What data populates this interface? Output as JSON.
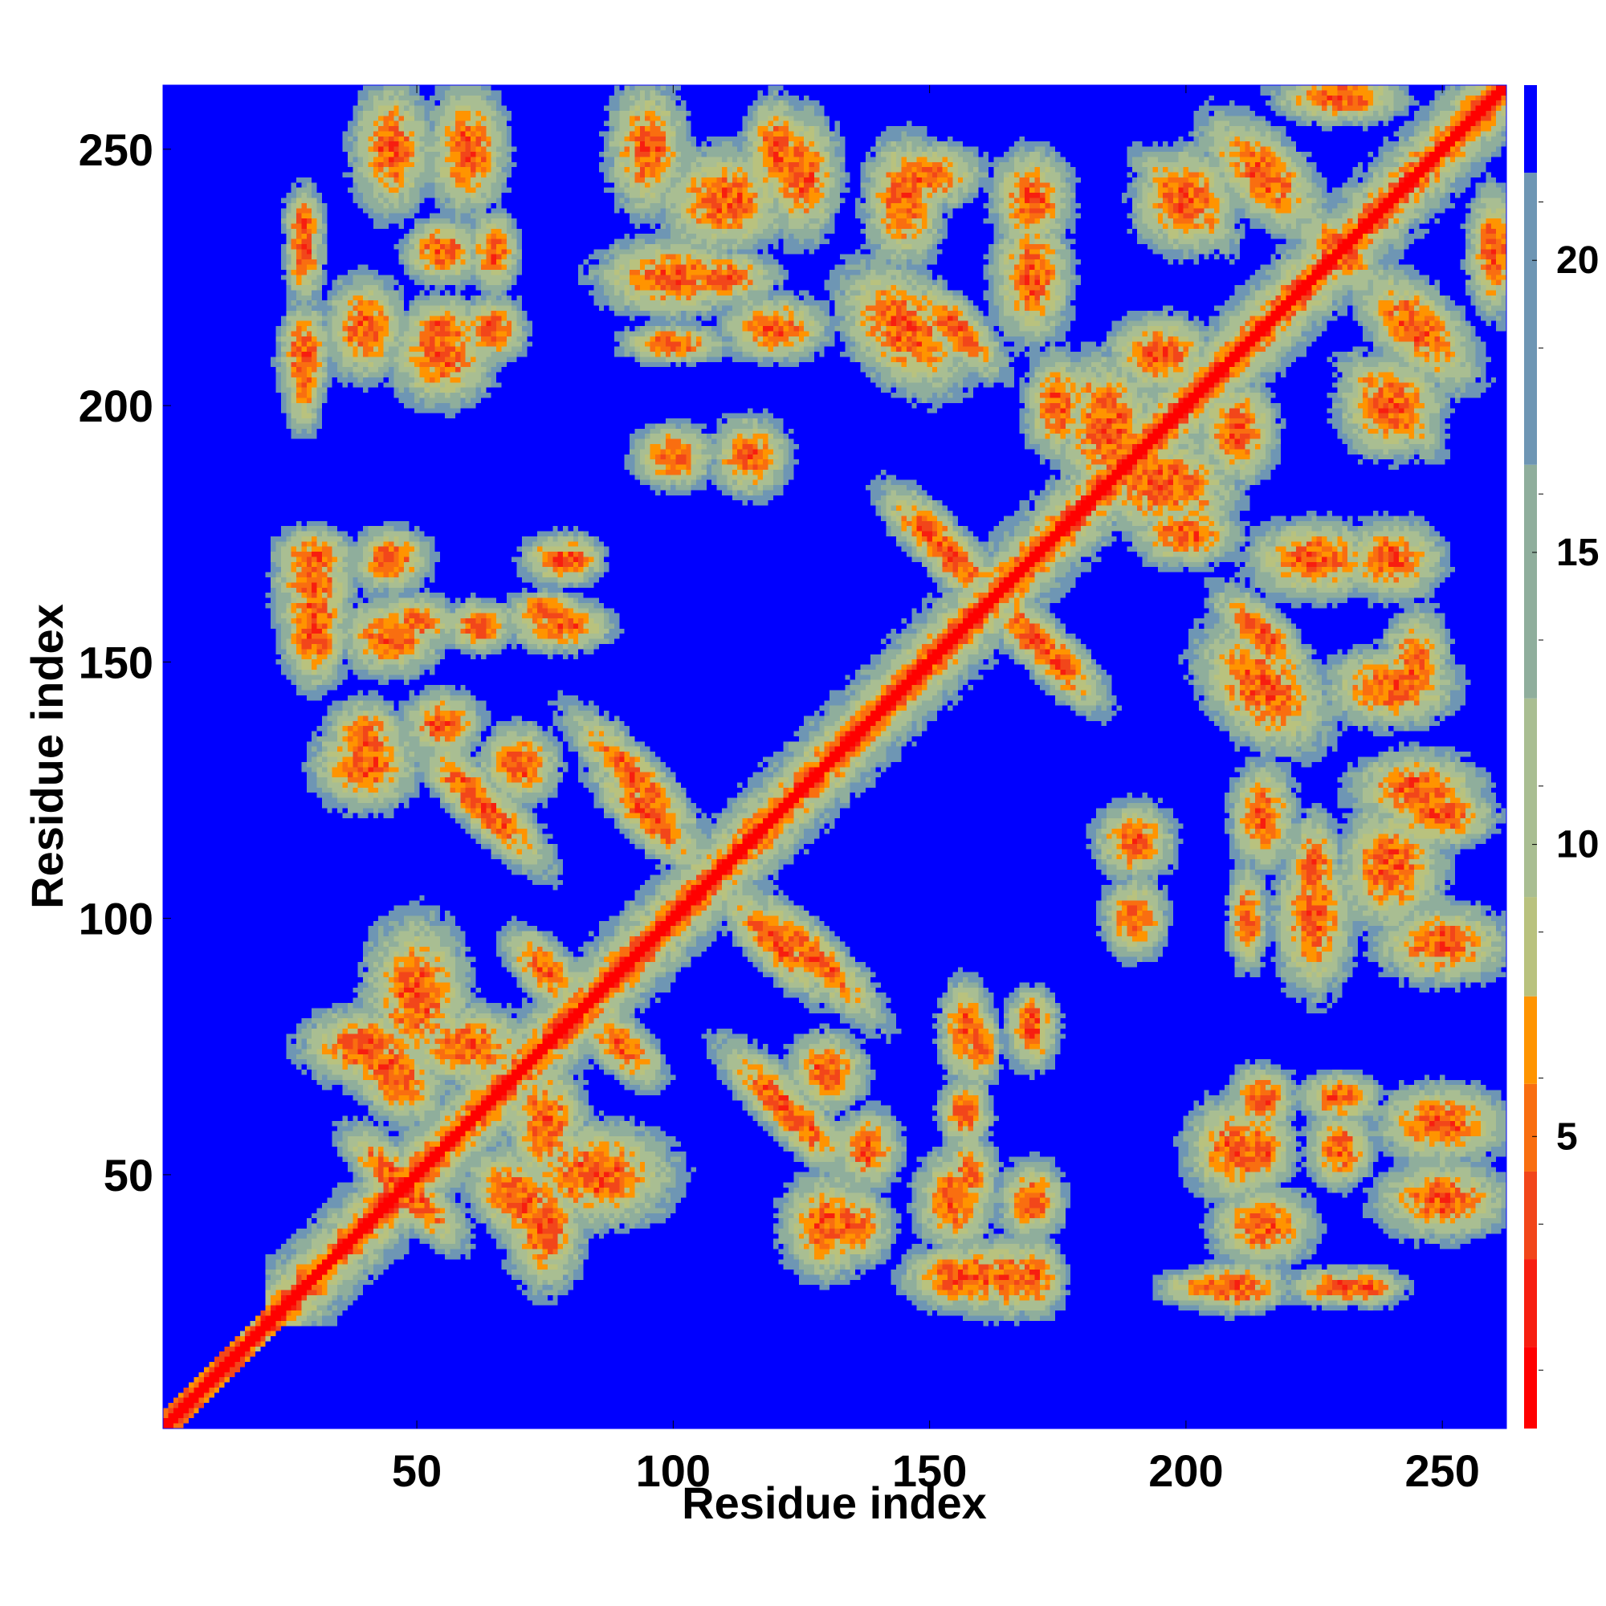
{
  "chart_data": {
    "type": "heatmap",
    "description_of_values": "residue-residue distance map (Angstrom-like units), symmetric about diagonal",
    "n_residues": 262,
    "xlabel": "Residue index",
    "ylabel": "Residue index",
    "xlim": [
      1,
      262
    ],
    "ylim": [
      1,
      262
    ],
    "x_ticks": [
      "50",
      "100",
      "150",
      "200",
      "250"
    ],
    "y_ticks": [
      "50",
      "100",
      "150",
      "200",
      "250"
    ],
    "colorbar": {
      "range": [
        0,
        23
      ],
      "ticks": [
        "5",
        "10",
        "15",
        "20"
      ],
      "tick_values": [
        5,
        10,
        15,
        20
      ],
      "levels": [
        {
          "from": 0,
          "to": 1.4,
          "color": "#ff0000"
        },
        {
          "from": 1.4,
          "to": 2.9,
          "color": "#f71e10"
        },
        {
          "from": 2.9,
          "to": 4.4,
          "color": "#f2461a"
        },
        {
          "from": 4.4,
          "to": 5.9,
          "color": "#f96e10"
        },
        {
          "from": 5.9,
          "to": 7.4,
          "color": "#ff9400"
        },
        {
          "from": 7.4,
          "to": 9.1,
          "color": "#b9c27e"
        },
        {
          "from": 9.1,
          "to": 12.5,
          "color": "#a9be92"
        },
        {
          "from": 12.5,
          "to": 16.5,
          "color": "#8fae9c"
        },
        {
          "from": 16.5,
          "to": 21.5,
          "color": "#6e96b4"
        },
        {
          "from": 21.5,
          "to": 23,
          "color": "#0000ff"
        }
      ]
    },
    "background_color": "#0000ff",
    "contact_clusters": [
      {
        "x": 92,
        "y": 128,
        "sx": 14,
        "sy": 4,
        "orient": "anti"
      },
      {
        "x": 120,
        "y": 95,
        "sx": 12,
        "sy": 4,
        "orient": "anti"
      },
      {
        "x": 65,
        "y": 120,
        "sx": 12,
        "sy": 4,
        "orient": "anti"
      },
      {
        "x": 55,
        "y": 138,
        "sx": 6,
        "sy": 5,
        "orient": "none"
      },
      {
        "x": 40,
        "y": 130,
        "sx": 8,
        "sy": 7,
        "orient": "none"
      },
      {
        "x": 70,
        "y": 130,
        "sx": 6,
        "sy": 6,
        "orient": "none"
      },
      {
        "x": 45,
        "y": 50,
        "sx": 10,
        "sy": 4,
        "orient": "anti"
      },
      {
        "x": 60,
        "y": 75,
        "sx": 10,
        "sy": 6,
        "orient": "none"
      },
      {
        "x": 40,
        "y": 75,
        "sx": 10,
        "sy": 6,
        "orient": "none"
      },
      {
        "x": 70,
        "y": 45,
        "sx": 10,
        "sy": 6,
        "orient": "anti"
      },
      {
        "x": 85,
        "y": 50,
        "sx": 12,
        "sy": 8,
        "orient": "none"
      },
      {
        "x": 90,
        "y": 75,
        "sx": 8,
        "sy": 4,
        "orient": "anti"
      },
      {
        "x": 75,
        "y": 90,
        "sx": 6,
        "sy": 4,
        "orient": "anti"
      },
      {
        "x": 125,
        "y": 60,
        "sx": 10,
        "sy": 4,
        "orient": "anti"
      },
      {
        "x": 135,
        "y": 40,
        "sx": 6,
        "sy": 6,
        "orient": "none"
      },
      {
        "x": 165,
        "y": 30,
        "sx": 5,
        "sy": 6,
        "orient": "none"
      },
      {
        "x": 155,
        "y": 45,
        "sx": 6,
        "sy": 8,
        "orient": "none"
      },
      {
        "x": 170,
        "y": 80,
        "sx": 4,
        "sy": 5,
        "orient": "none"
      },
      {
        "x": 160,
        "y": 75,
        "sx": 3,
        "sy": 6,
        "orient": "none"
      },
      {
        "x": 155,
        "y": 30,
        "sx": 8,
        "sy": 5,
        "orient": "none"
      },
      {
        "x": 190,
        "y": 115,
        "sx": 6,
        "sy": 6,
        "orient": "none"
      },
      {
        "x": 210,
        "y": 55,
        "sx": 8,
        "sy": 8,
        "orient": "none"
      },
      {
        "x": 205,
        "y": 28,
        "sx": 8,
        "sy": 3,
        "orient": "none"
      },
      {
        "x": 230,
        "y": 28,
        "sx": 8,
        "sy": 3,
        "orient": "none"
      },
      {
        "x": 225,
        "y": 110,
        "sx": 4,
        "sy": 8,
        "orient": "none"
      },
      {
        "x": 212,
        "y": 100,
        "sx": 3,
        "sy": 8,
        "orient": "none"
      },
      {
        "x": 250,
        "y": 120,
        "sx": 8,
        "sy": 5,
        "orient": "none"
      },
      {
        "x": 250,
        "y": 95,
        "sx": 8,
        "sy": 4,
        "orient": "none"
      },
      {
        "x": 250,
        "y": 60,
        "sx": 8,
        "sy": 5,
        "orient": "none"
      },
      {
        "x": 170,
        "y": 155,
        "sx": 10,
        "sy": 4,
        "orient": "anti"
      },
      {
        "x": 150,
        "y": 175,
        "sx": 10,
        "sy": 4,
        "orient": "anti"
      },
      {
        "x": 195,
        "y": 185,
        "sx": 12,
        "sy": 8,
        "orient": "none"
      },
      {
        "x": 215,
        "y": 155,
        "sx": 10,
        "sy": 4,
        "orient": "anti"
      },
      {
        "x": 200,
        "y": 175,
        "sx": 8,
        "sy": 5,
        "orient": "none"
      },
      {
        "x": 240,
        "y": 200,
        "sx": 10,
        "sy": 4,
        "orient": "anti"
      },
      {
        "x": 225,
        "y": 170,
        "sx": 10,
        "sy": 6,
        "orient": "none"
      },
      {
        "x": 240,
        "y": 145,
        "sx": 10,
        "sy": 6,
        "orient": "none"
      },
      {
        "x": 185,
        "y": 200,
        "sx": 8,
        "sy": 4,
        "orient": "anti"
      },
      {
        "x": 215,
        "y": 245,
        "sx": 12,
        "sy": 6,
        "orient": "anti"
      },
      {
        "x": 230,
        "y": 230,
        "sx": 8,
        "sy": 4,
        "orient": "anti"
      },
      {
        "x": 145,
        "y": 215,
        "sx": 12,
        "sy": 8,
        "orient": "anti"
      },
      {
        "x": 150,
        "y": 245,
        "sx": 8,
        "sy": 5,
        "orient": "none"
      },
      {
        "x": 170,
        "y": 240,
        "sx": 6,
        "sy": 8,
        "orient": "none"
      },
      {
        "x": 200,
        "y": 240,
        "sx": 8,
        "sy": 8,
        "orient": "none"
      },
      {
        "x": 195,
        "y": 210,
        "sx": 8,
        "sy": 6,
        "orient": "none"
      },
      {
        "x": 260,
        "y": 230,
        "sx": 4,
        "sy": 10,
        "orient": "none"
      },
      {
        "x": 110,
        "y": 240,
        "sx": 10,
        "sy": 8,
        "orient": "none"
      },
      {
        "x": 125,
        "y": 245,
        "sx": 6,
        "sy": 10,
        "orient": "none"
      },
      {
        "x": 100,
        "y": 225,
        "sx": 12,
        "sy": 6,
        "orient": "none"
      },
      {
        "x": 120,
        "y": 215,
        "sx": 8,
        "sy": 5,
        "orient": "none"
      },
      {
        "x": 115,
        "y": 190,
        "sx": 6,
        "sy": 6,
        "orient": "anti"
      },
      {
        "x": 100,
        "y": 190,
        "sx": 6,
        "sy": 5,
        "orient": "none"
      },
      {
        "x": 55,
        "y": 215,
        "sx": 6,
        "sy": 5,
        "orient": "none"
      },
      {
        "x": 65,
        "y": 215,
        "sx": 5,
        "sy": 5,
        "orient": "none"
      },
      {
        "x": 40,
        "y": 215,
        "sx": 6,
        "sy": 8,
        "orient": "none"
      },
      {
        "x": 55,
        "y": 230,
        "sx": 6,
        "sy": 5,
        "orient": "none"
      },
      {
        "x": 65,
        "y": 230,
        "sx": 4,
        "sy": 6,
        "orient": "none"
      },
      {
        "x": 28,
        "y": 210,
        "sx": 4,
        "sy": 8,
        "orient": "none"
      },
      {
        "x": 28,
        "y": 235,
        "sx": 3,
        "sy": 6,
        "orient": "none"
      },
      {
        "x": 45,
        "y": 250,
        "sx": 6,
        "sy": 10,
        "orient": "none"
      },
      {
        "x": 60,
        "y": 250,
        "sx": 6,
        "sy": 10,
        "orient": "none"
      },
      {
        "x": 95,
        "y": 250,
        "sx": 6,
        "sy": 10,
        "orient": "none"
      },
      {
        "x": 30,
        "y": 170,
        "sx": 6,
        "sy": 5,
        "orient": "none"
      },
      {
        "x": 30,
        "y": 160,
        "sx": 6,
        "sy": 4,
        "orient": "none"
      },
      {
        "x": 45,
        "y": 170,
        "sx": 6,
        "sy": 5,
        "orient": "none"
      },
      {
        "x": 50,
        "y": 158,
        "sx": 6,
        "sy": 4,
        "orient": "none"
      },
      {
        "x": 78,
        "y": 170,
        "sx": 6,
        "sy": 4,
        "orient": "none"
      },
      {
        "x": 78,
        "y": 157,
        "sx": 8,
        "sy": 4,
        "orient": "none"
      },
      {
        "x": 62,
        "y": 157,
        "sx": 5,
        "sy": 4,
        "orient": "none"
      },
      {
        "x": 30,
        "y": 30,
        "sx": 4,
        "sy": 3,
        "orient": "none"
      }
    ]
  }
}
